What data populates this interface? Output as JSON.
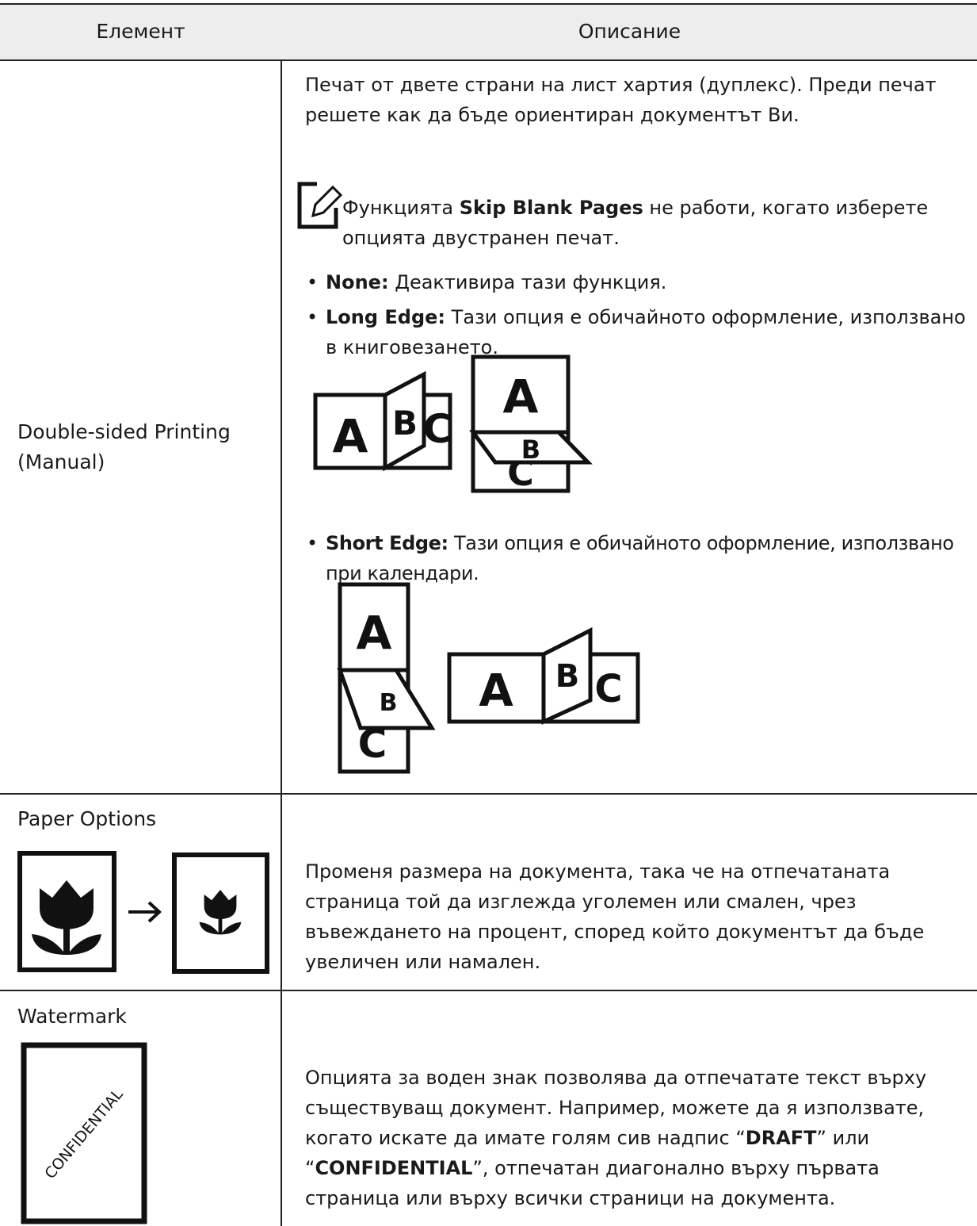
{
  "table": {
    "header": [
      "Елемент",
      "Описание"
    ],
    "rows": [
      {
        "element": "Double-sided Printing (Manual)",
        "description": {
          "intro": "Печат от двете страни на лист хартия (дуплекс). Преди печат решете как да бъде ориентиран документът Ви.",
          "note": [
            {
              "text": "Функцията "
            },
            {
              "text": "Skip Blank Pages",
              "bold": true
            },
            {
              "text": " не работи, когато изберете опцията двустранен печат."
            }
          ],
          "options": [
            {
              "term": "None:",
              "text": "Деактивира тази функция."
            },
            {
              "term": "Long Edge:",
              "text": "Тази опция е обичайното оформление, използвано в книговезането."
            },
            {
              "term": "Short Edge:",
              "text": "Тази опция е обичайното оформление, използвано при календари."
            }
          ]
        }
      },
      {
        "element": "Paper Options",
        "description": "Променя размера на документа, така че на отпечатаната страница той да изглежда уголемен или смален, чрез въвеждането на процент, според който документът да бъде увеличен или намален."
      },
      {
        "element": "Watermark",
        "image_text": "CONFIDENTIAL",
        "description": [
          {
            "text": "Опцията за воден знак позволява да отпечатате текст върху съществуващ документ. Например, можете да я използвате, когато искате да имате голям сив надпис “"
          },
          {
            "text": "DRAFT",
            "bold": true
          },
          {
            "text": "” или “"
          },
          {
            "text": "CONFIDENTIAL",
            "bold": true
          },
          {
            "text": "”, отпечатан диагонално върху първата страница или върху всички страници на документа."
          }
        ]
      }
    ],
    "illustration_letters": [
      "A",
      "B",
      "C"
    ]
  }
}
